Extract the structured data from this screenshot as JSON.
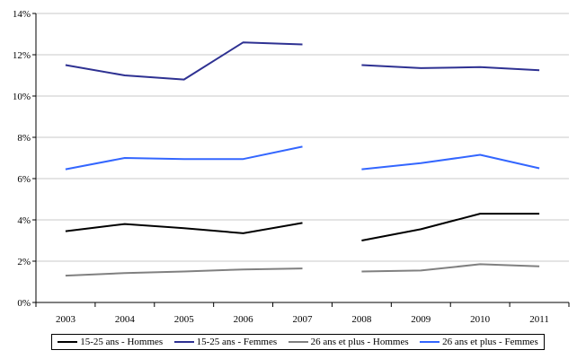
{
  "chart_data": {
    "type": "line",
    "title": "",
    "xlabel": "",
    "ylabel": "",
    "categories": [
      "2003",
      "2004",
      "2005",
      "2006",
      "2007",
      "2008",
      "2009",
      "2010",
      "2011"
    ],
    "ylim": [
      0,
      14
    ],
    "yticks": [
      "0%",
      "2%",
      "4%",
      "6%",
      "8%",
      "10%",
      "12%",
      "14%"
    ],
    "grid": "horizontal",
    "legend_position": "bottom",
    "series": [
      {
        "name": "15-25 ans - Hommes",
        "color": "#000000",
        "values": [
          3.45,
          3.8,
          3.6,
          3.35,
          3.85,
          3.0,
          3.55,
          4.3,
          4.3
        ]
      },
      {
        "name": "15-25 ans - Femmes",
        "color": "#2e3192",
        "values": [
          11.5,
          11.0,
          10.8,
          12.6,
          12.5,
          11.5,
          11.35,
          11.4,
          11.25
        ]
      },
      {
        "name": "26 ans et plus - Hommes",
        "color": "#808080",
        "values": [
          1.3,
          1.42,
          1.5,
          1.6,
          1.65,
          1.5,
          1.55,
          1.85,
          1.75
        ]
      },
      {
        "name": "26 ans et plus - Femmes",
        "color": "#3366ff",
        "values": [
          6.45,
          7.0,
          6.95,
          6.95,
          7.55,
          6.45,
          6.75,
          7.15,
          6.5
        ]
      }
    ],
    "segments": [
      [
        0,
        4
      ],
      [
        5,
        8
      ]
    ]
  }
}
